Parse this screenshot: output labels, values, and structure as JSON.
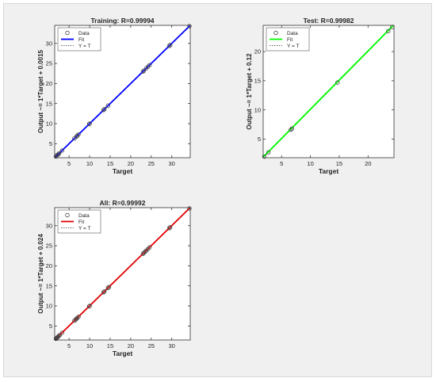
{
  "chart_data": [
    {
      "type": "scatter",
      "title": "Training: R=0.99994",
      "xlabel": "Target",
      "ylabel": "Output ~= 1*Target + 0.0015",
      "xlim": [
        1.5,
        34.5
      ],
      "ylim": [
        1.5,
        34.5
      ],
      "xticks": [
        5,
        10,
        15,
        20,
        25,
        30
      ],
      "yticks": [
        5,
        10,
        15,
        20,
        25,
        30
      ],
      "fit": {
        "slope": 1,
        "intercept": 0.0015
      },
      "fit_color": "#0000ff",
      "legend": {
        "location": "top-left",
        "entries": [
          "Data",
          "Fit",
          "Y = T"
        ]
      },
      "points": {
        "x": [
          1.8,
          2.0,
          2.2,
          2.4,
          2.6,
          3.3,
          6.3,
          6.8,
          7.0,
          7.3,
          9.9,
          10.0,
          13.4,
          13.6,
          14.5,
          23.0,
          23.2,
          23.8,
          24.2,
          24.6,
          29.4,
          29.6,
          34.3
        ],
        "y": [
          1.8,
          2.0,
          2.2,
          2.4,
          2.6,
          3.3,
          6.3,
          6.8,
          7.0,
          7.3,
          9.9,
          10.0,
          13.4,
          13.6,
          14.5,
          23.0,
          23.2,
          23.8,
          24.2,
          24.6,
          29.4,
          29.6,
          34.3
        ]
      }
    },
    {
      "type": "scatter",
      "title": "Test: R=0.99982",
      "xlabel": "Target",
      "ylabel": "Output ~= 1*Target + 0.12",
      "xlim": [
        1.8,
        24.5
      ],
      "ylim": [
        1.8,
        24.5
      ],
      "xticks": [
        5,
        10,
        15,
        20
      ],
      "yticks": [
        5,
        10,
        15,
        20
      ],
      "fit": {
        "slope": 1,
        "intercept": 0.12
      },
      "fit_color": "#00ff00",
      "legend": {
        "location": "top-left",
        "entries": [
          "Data",
          "Fit",
          "Y = T"
        ]
      },
      "points": {
        "x": [
          2.0,
          2.7,
          6.6,
          6.8,
          14.7,
          23.5,
          24.2
        ],
        "y": [
          2.0,
          2.7,
          6.6,
          6.8,
          14.7,
          23.5,
          24.2
        ]
      }
    },
    {
      "type": "scatter",
      "title": "All: R=0.99992",
      "xlabel": "Target",
      "ylabel": "Output ~= 1*Target + 0.024",
      "xlim": [
        1.5,
        34.5
      ],
      "ylim": [
        1.5,
        34.5
      ],
      "xticks": [
        5,
        10,
        15,
        20,
        25,
        30
      ],
      "yticks": [
        5,
        10,
        15,
        20,
        25,
        30
      ],
      "fit": {
        "slope": 1,
        "intercept": 0.024
      },
      "fit_color": "#e00000",
      "legend": {
        "location": "top-left",
        "entries": [
          "Data",
          "Fit",
          "Y = T"
        ]
      },
      "points": {
        "x": [
          1.8,
          1.9,
          2.0,
          2.1,
          2.2,
          2.3,
          2.5,
          2.7,
          3.3,
          6.3,
          6.6,
          6.8,
          7.0,
          7.3,
          9.9,
          10.0,
          13.4,
          13.6,
          14.5,
          14.7,
          23.0,
          23.2,
          23.5,
          23.8,
          24.2,
          24.6,
          29.4,
          29.6,
          34.3
        ],
        "y": [
          1.8,
          1.9,
          2.0,
          2.1,
          2.2,
          2.3,
          2.5,
          2.7,
          3.3,
          6.3,
          6.6,
          6.8,
          7.0,
          7.3,
          9.9,
          10.0,
          13.4,
          13.6,
          14.5,
          14.7,
          23.0,
          23.2,
          23.5,
          23.8,
          24.2,
          24.6,
          29.4,
          29.6,
          34.3
        ]
      }
    }
  ]
}
